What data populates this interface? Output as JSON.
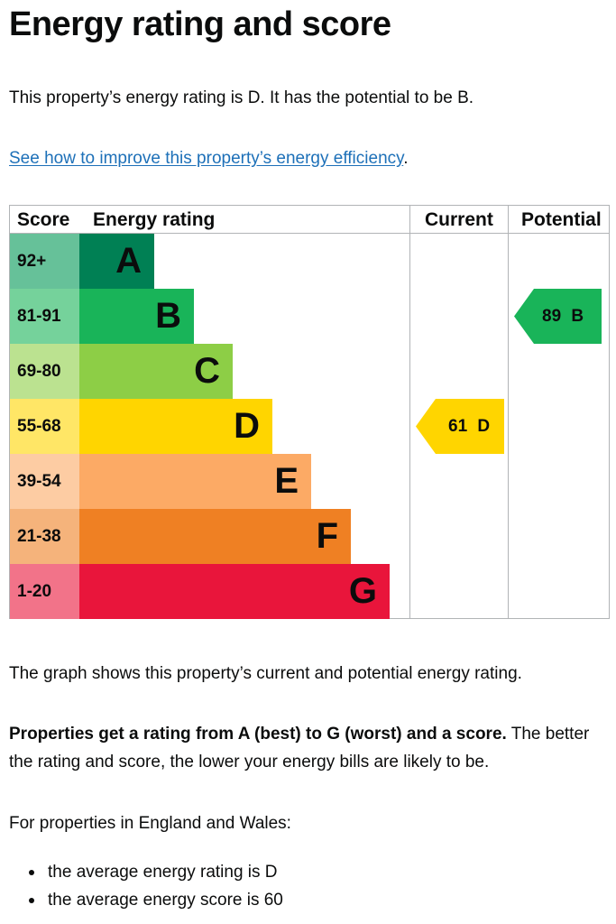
{
  "title": "Energy rating and score",
  "intro": "This property’s energy rating is D. It has the potential to be B.",
  "improve_link": "See how to improve this property’s energy efficiency",
  "improve_link_suffix": ".",
  "chart_data": {
    "type": "table",
    "headers": [
      "Score",
      "Energy rating",
      "Current",
      "Potential"
    ],
    "bands": [
      {
        "score": "92+",
        "rating": "A",
        "color": "#008054",
        "score_bg": "#66c199"
      },
      {
        "score": "81-91",
        "rating": "B",
        "color": "#19b459",
        "score_bg": "#75d29b"
      },
      {
        "score": "69-80",
        "rating": "C",
        "color": "#8dce46",
        "score_bg": "#bbe290"
      },
      {
        "score": "55-68",
        "rating": "D",
        "color": "#ffd500",
        "score_bg": "#ffe666"
      },
      {
        "score": "39-54",
        "rating": "E",
        "color": "#fcaa65",
        "score_bg": "#fdcca3"
      },
      {
        "score": "21-38",
        "rating": "F",
        "color": "#ef8023",
        "score_bg": "#f5b37b"
      },
      {
        "score": "1-20",
        "rating": "G",
        "color": "#e9153b",
        "score_bg": "#f27389"
      }
    ],
    "current": {
      "score": 61,
      "rating": "D",
      "label": "61 D",
      "color": "#ffd500"
    },
    "potential": {
      "score": 89,
      "rating": "B",
      "label": "89 B",
      "color": "#19b459"
    }
  },
  "graph_caption": "The graph shows this property’s current and potential energy rating.",
  "explain_bold": "Properties get a rating from A (best) to G (worst) and a score.",
  "explain_rest_1": " The better",
  "explain_rest_2": "the rating and score, the lower your energy bills are likely to be.",
  "england_wales": "For properties in England and Wales:",
  "bullets": [
    "the average energy rating is D",
    "the average energy score is 60"
  ]
}
